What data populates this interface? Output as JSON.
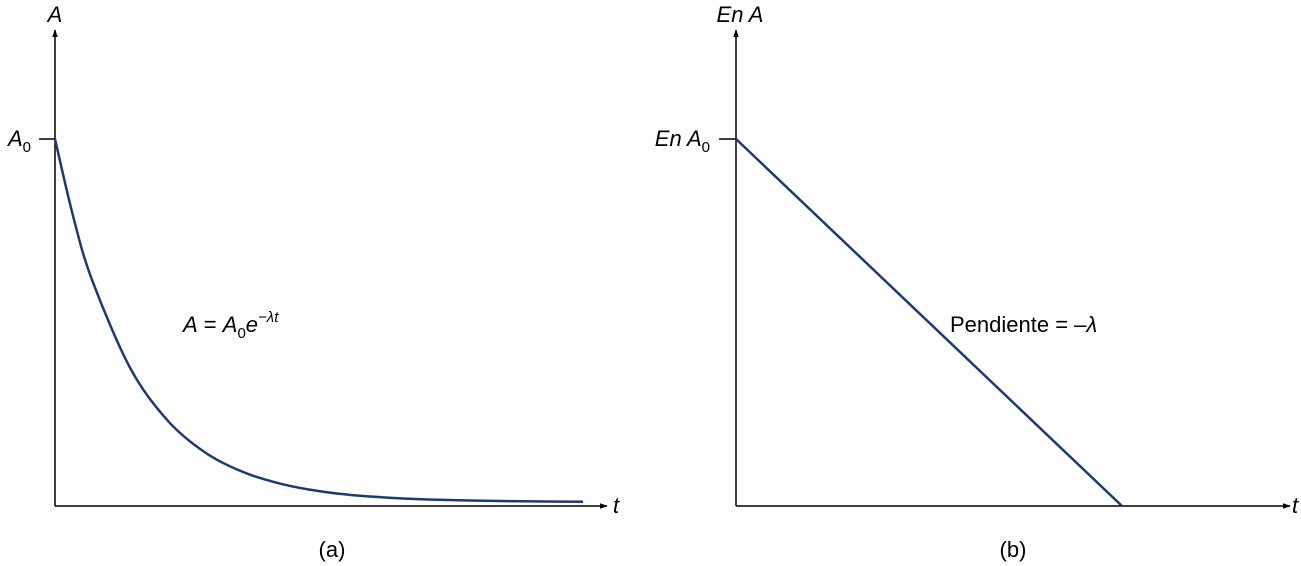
{
  "colors": {
    "curve": "#1f3a6e",
    "axis": "#000000"
  },
  "chart_data": [
    {
      "type": "line",
      "panel_label": "(a)",
      "xlabel": "t",
      "ylabel": "A",
      "y_tick_label": {
        "main": "A",
        "sub": "0"
      },
      "annotation": {
        "lhs": "A",
        "eq": " = ",
        "base": "A",
        "base_sub": "0",
        "e": "e",
        "exponent": "−λt"
      },
      "series": [
        {
          "x": [
            0,
            0.25,
            0.5,
            1,
            1.5,
            2,
            2.5,
            3,
            3.5,
            4,
            4.5,
            5,
            5.5,
            6,
            6.5,
            7
          ],
          "y": [
            1,
            0.779,
            0.607,
            0.368,
            0.223,
            0.135,
            0.082,
            0.05,
            0.03,
            0.018,
            0.011,
            0.0067,
            0.0041,
            0.0025,
            0.0015,
            0.0009
          ]
        }
      ]
    },
    {
      "type": "line",
      "panel_label": "(b)",
      "xlabel": "t",
      "ylabel": "En A",
      "y_tick_label": {
        "main": "En A",
        "sub": "0"
      },
      "annotation": {
        "text": "Pendiente",
        "eq": " = ",
        "value": "–λ"
      },
      "series": [
        {
          "x": [
            0,
            1
          ],
          "y": [
            1,
            0
          ]
        }
      ]
    }
  ]
}
